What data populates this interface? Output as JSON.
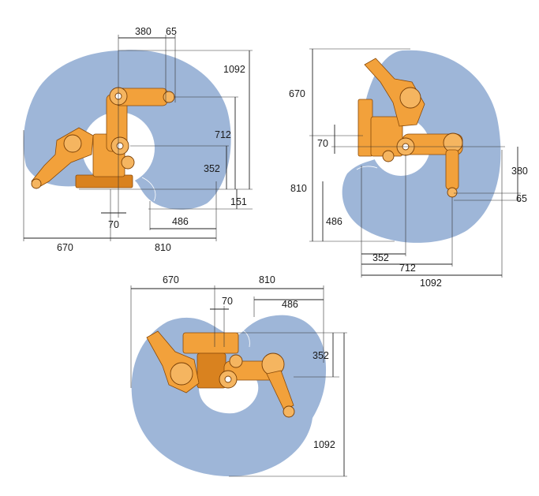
{
  "colors": {
    "envelope": "#9eb6d8",
    "robot": "#f2a13b",
    "robot_shade": "#d9821f",
    "dimension_lines": "#222222"
  },
  "side_view": {
    "dim_380": "380",
    "dim_65": "65",
    "dim_1092": "1092",
    "dim_712": "712",
    "dim_352": "352",
    "dim_151": "151",
    "dim_486": "486",
    "dim_70": "70",
    "dim_670": "670",
    "dim_810": "810"
  },
  "rear_view": {
    "dim_670": "670",
    "dim_70": "70",
    "dim_380": "380",
    "dim_810": "810",
    "dim_65": "65",
    "dim_486": "486",
    "dim_352": "352",
    "dim_712": "712",
    "dim_1092": "1092"
  },
  "top_view": {
    "dim_670": "670",
    "dim_810": "810",
    "dim_70": "70",
    "dim_486": "486",
    "dim_352": "352",
    "dim_1092": "1092"
  }
}
